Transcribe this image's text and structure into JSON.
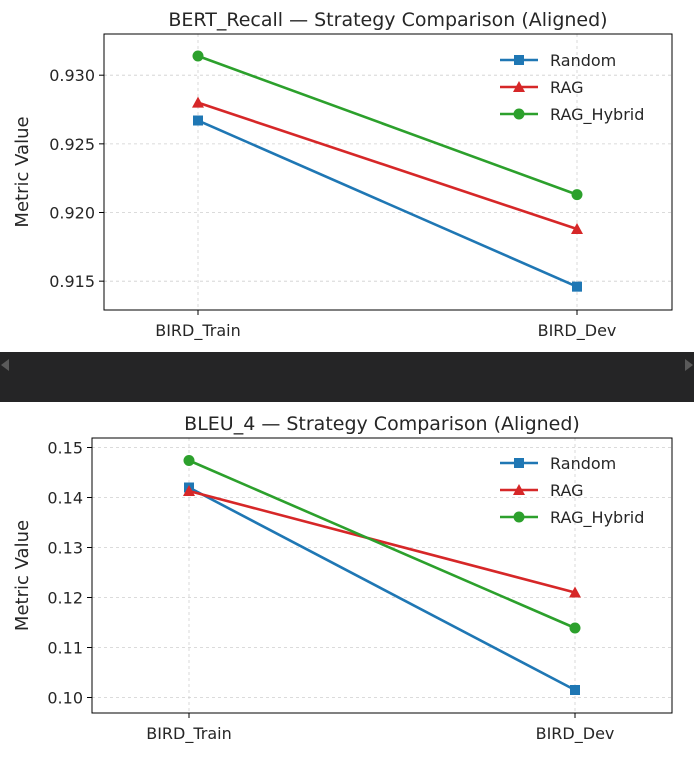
{
  "chart_data": [
    {
      "type": "line",
      "title": "BERT_Recall — Strategy Comparison (Aligned)",
      "xlabel": "",
      "ylabel": "Metric Value",
      "categories": [
        "BIRD_Train",
        "BIRD_Dev"
      ],
      "ylim": [
        0.9129,
        0.933
      ],
      "yticks": [
        0.915,
        0.92,
        0.925,
        0.93
      ],
      "ytick_labels": [
        "0.915",
        "0.920",
        "0.925",
        "0.930"
      ],
      "grid": true,
      "legend_position": "top-right",
      "series": [
        {
          "name": "Random",
          "values": [
            0.9267,
            0.9146
          ],
          "color": "#1f77b4",
          "marker": "square"
        },
        {
          "name": "RAG",
          "values": [
            0.928,
            0.9188
          ],
          "color": "#d62728",
          "marker": "triangle"
        },
        {
          "name": "RAG_Hybrid",
          "values": [
            0.9314,
            0.9213
          ],
          "color": "#2ca02c",
          "marker": "circle"
        }
      ]
    },
    {
      "type": "line",
      "title": "BLEU_4 — Strategy Comparison (Aligned)",
      "xlabel": "",
      "ylabel": "Metric Value",
      "categories": [
        "BIRD_Train",
        "BIRD_Dev"
      ],
      "ylim": [
        0.0969,
        0.1519
      ],
      "yticks": [
        0.1,
        0.11,
        0.12,
        0.13,
        0.14,
        0.15
      ],
      "ytick_labels": [
        "0.10",
        "0.11",
        "0.12",
        "0.13",
        "0.14",
        "0.15"
      ],
      "grid": true,
      "legend_position": "top-right",
      "series": [
        {
          "name": "Random",
          "values": [
            0.142,
            0.1015
          ],
          "color": "#1f77b4",
          "marker": "square"
        },
        {
          "name": "RAG",
          "values": [
            0.1413,
            0.121
          ],
          "color": "#d62728",
          "marker": "triangle"
        },
        {
          "name": "RAG_Hybrid",
          "values": [
            0.1474,
            0.1139
          ],
          "color": "#2ca02c",
          "marker": "circle"
        }
      ]
    }
  ]
}
